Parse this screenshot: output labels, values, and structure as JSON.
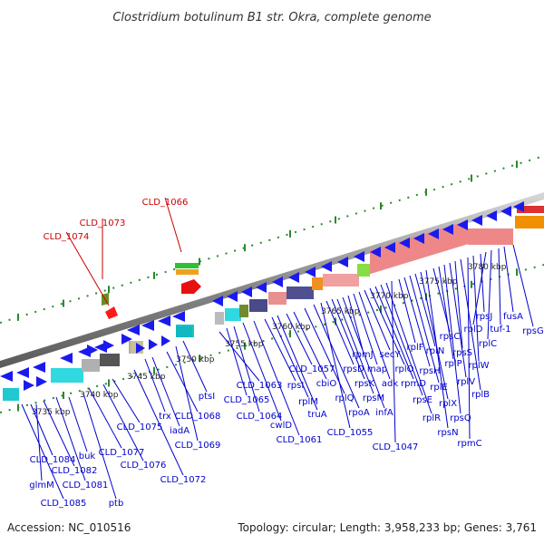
{
  "title": "Clostridium botulinum B1 str. Okra, complete genome",
  "footer": {
    "accession": "Accession: NC_010516",
    "topology": "Topology: circular; Length: 3,958,233 bp; Genes: 3,761"
  },
  "colors": {
    "label_blue": "#0000cc",
    "label_red": "#cc0000",
    "forward_blue": "#1a1aee",
    "tick_green": "#2a8a2a",
    "backbone": "#9a9a9a"
  },
  "kbp_marks": [
    "3735 kbp",
    "3740 kbp",
    "3745 kbp",
    "3750 kbp",
    "3755 kbp",
    "3760 kbp",
    "3765 kbp",
    "3770 kbp",
    "3775 kbp",
    "3780 kbp"
  ],
  "red_labels": [
    "CLD_1066",
    "CLD_1073",
    "CLD_1074"
  ],
  "blue_labels": [
    "CLD_1084",
    "buk",
    "CLD_1082",
    "CLD_1081",
    "glmM",
    "CLD_1085",
    "ptb",
    "CLD_1077",
    "CLD_1076",
    "CLD_1075",
    "CLD_1072",
    "trx",
    "iadA",
    "CLD_1068",
    "CLD_1069",
    "ptsI",
    "CLD_1063",
    "CLD_1065",
    "CLD_1064",
    "cwlD",
    "CLD_1061",
    "rpsI",
    "rplM",
    "truA",
    "CLD_1057",
    "cbiO",
    "rplQ",
    "rpoA",
    "CLD_1055",
    "rpsD",
    "rpsK",
    "rpsM",
    "infA",
    "rpmJ",
    "map",
    "adk",
    "secY",
    "rplO",
    "rpmD",
    "rpsE",
    "rplR",
    "CLD_1047",
    "rplF",
    "rpsH",
    "rplE",
    "rplN",
    "rplX",
    "rpsN",
    "rpsC",
    "rplP",
    "rpsQ",
    "rplV",
    "rpsS",
    "rplB",
    "rpmC",
    "rplW",
    "rpsJ",
    "rplD",
    "rplC",
    "tuf-1",
    "fusA",
    "rpsG"
  ]
}
